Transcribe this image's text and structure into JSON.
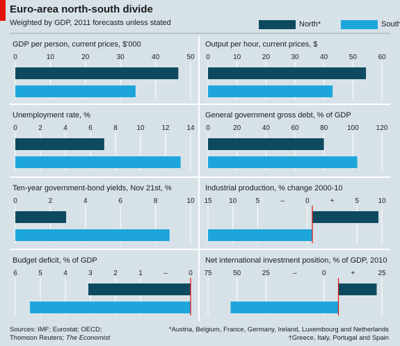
{
  "header": {
    "title": "Euro-area north-south divide",
    "subtitle": "Weighted by GDP, 2011 forecasts unless stated"
  },
  "legend": [
    {
      "label": "North*",
      "color": "#0e4a5f"
    },
    {
      "label": "South†",
      "color": "#1ea6da"
    }
  ],
  "colors": {
    "north": "#0e4a5f",
    "south": "#1ea6da",
    "zero_line": "#e3120b",
    "background": "#d7e2e8",
    "divider": "#ffffff"
  },
  "chart_data": [
    {
      "type": "bar",
      "orientation": "horizontal",
      "title": "GDP per person, current prices, $'000",
      "ticks": [
        "0",
        "10",
        "20",
        "30",
        "40",
        "50"
      ],
      "xlim": [
        0,
        50
      ],
      "series": [
        {
          "name": "North*",
          "values": [
            46.5
          ]
        },
        {
          "name": "South†",
          "values": [
            34.3
          ]
        }
      ]
    },
    {
      "type": "bar",
      "orientation": "horizontal",
      "title": "Output per hour, current prices, $",
      "ticks": [
        "0",
        "10",
        "20",
        "30",
        "40",
        "50",
        "60"
      ],
      "xlim": [
        0,
        60
      ],
      "series": [
        {
          "name": "North*",
          "values": [
            54.5
          ]
        },
        {
          "name": "South†",
          "values": [
            43.0
          ]
        }
      ]
    },
    {
      "type": "bar",
      "orientation": "horizontal",
      "title": "Unemployment rate, %",
      "ticks": [
        "0",
        "2",
        "4",
        "6",
        "8",
        "10",
        "12",
        "14"
      ],
      "xlim": [
        0,
        14
      ],
      "series": [
        {
          "name": "North*",
          "values": [
            7.1
          ]
        },
        {
          "name": "South†",
          "values": [
            13.2
          ]
        }
      ]
    },
    {
      "type": "bar",
      "orientation": "horizontal",
      "title": "General government gross debt, % of GDP",
      "ticks": [
        "0",
        "20",
        "40",
        "60",
        "80",
        "100",
        "120"
      ],
      "xlim": [
        0,
        120
      ],
      "series": [
        {
          "name": "North*",
          "values": [
            80
          ]
        },
        {
          "name": "South†",
          "values": [
            103
          ]
        }
      ]
    },
    {
      "type": "bar",
      "orientation": "horizontal",
      "title": "Ten-year government-bond yields, Nov 21st, %",
      "ticks": [
        "0",
        "2",
        "4",
        "6",
        "8",
        "10"
      ],
      "xlim": [
        0,
        10
      ],
      "series": [
        {
          "name": "North*",
          "values": [
            2.9
          ]
        },
        {
          "name": "South†",
          "values": [
            8.8
          ]
        }
      ]
    },
    {
      "type": "bar",
      "orientation": "horizontal",
      "title": "Industrial production, % change 2000-10",
      "ticks": [
        "15",
        "10",
        "5",
        "–",
        "0",
        "+",
        "5",
        "10"
      ],
      "xlim": [
        -15,
        10
      ],
      "series": [
        {
          "name": "North*",
          "values": [
            9.5
          ]
        },
        {
          "name": "South†",
          "values": [
            -15
          ]
        }
      ]
    },
    {
      "type": "bar",
      "orientation": "horizontal",
      "reversed": true,
      "title": "Budget deficit, % of GDP",
      "ticks": [
        "6",
        "5",
        "4",
        "3",
        "2",
        "1",
        "–",
        "0"
      ],
      "xlim": [
        6,
        0
      ],
      "series": [
        {
          "name": "North*",
          "values": [
            3.5
          ]
        },
        {
          "name": "South†",
          "values": [
            5.5
          ]
        }
      ]
    },
    {
      "type": "bar",
      "orientation": "horizontal",
      "title": "Net international investment position, % of GDP, 2010",
      "ticks": [
        "75",
        "50",
        "25",
        "–",
        "0",
        "+",
        "25"
      ],
      "xlim": [
        -75,
        25
      ],
      "series": [
        {
          "name": "North*",
          "values": [
            22
          ]
        },
        {
          "name": "South†",
          "values": [
            -62
          ]
        }
      ]
    }
  ],
  "footer": {
    "sources_1": "Sources: IMF; Eurostat; OECD;",
    "sources_2": "Thomson Reuters; ",
    "sources_3": "The Economist",
    "note_1": "*Austria, Belgium, France, Germany, Ireland, Luxembourg and Netherlands",
    "note_2": "†Greece, Italy, Portugal and Spain"
  }
}
